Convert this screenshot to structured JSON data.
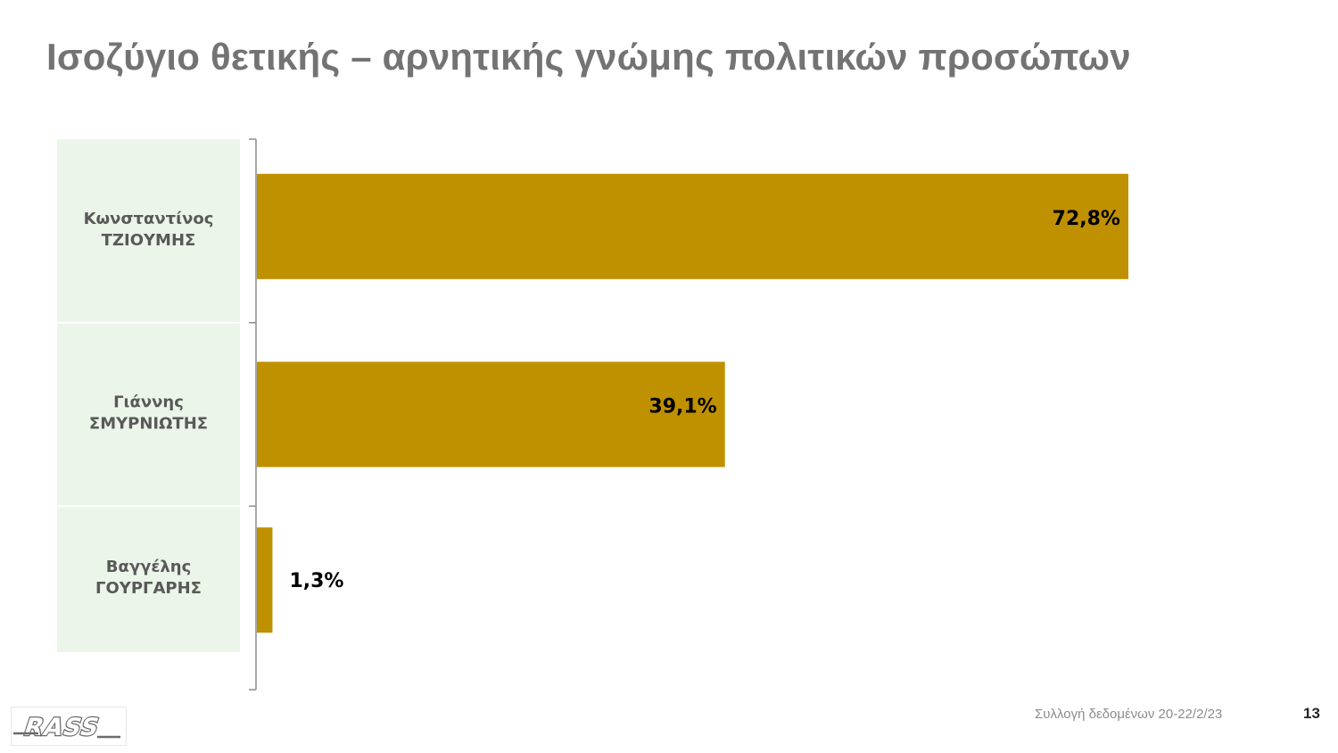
{
  "title": "Ισοζύγιο θετικής – αρνητικής γνώμης πολιτικών προσώπων",
  "footer": {
    "note": "Συλλογή δεδομένων 20-22/2/23",
    "page_number": "13",
    "logo_text": "RASS"
  },
  "chart_data": {
    "type": "bar",
    "orientation": "horizontal",
    "title": "",
    "xlabel": "",
    "ylabel": "",
    "categories": [
      [
        "Κωνσταντίνος",
        "ΤΖΙΟΥΜΗΣ"
      ],
      [
        "Γιάννης",
        "ΣΜΥΡΝΙΩΤΗΣ"
      ],
      [
        "Βαγγέλης",
        "ΓΟΥΡΓΑΡΗΣ"
      ]
    ],
    "values": [
      72.8,
      39.1,
      1.3
    ],
    "value_labels": [
      "72,8%",
      "39,1%",
      "1,3%"
    ],
    "xlim": [
      0,
      100
    ],
    "grid": false,
    "bar_color": "#bf9000",
    "category_band_color": "#ebf5e9"
  }
}
